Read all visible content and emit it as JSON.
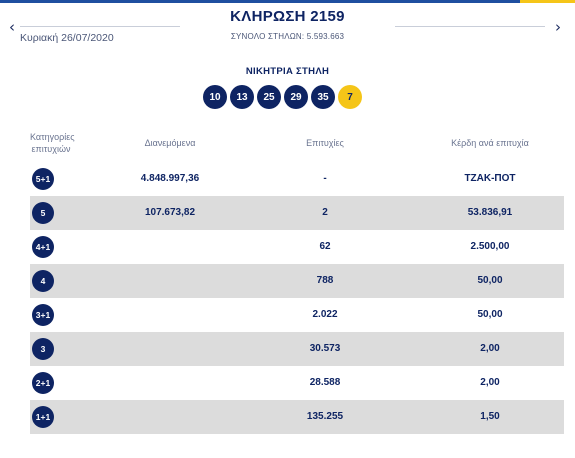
{
  "header": {
    "title": "ΚΛΗΡΩΣΗ 2159",
    "date": "Κυριακή 26/07/2020",
    "total_columns": "ΣΥΝΟΛΟ ΣΤΗΛΩΝ: 5.593.663",
    "prev_icon": "‹",
    "next_icon": "›"
  },
  "winning": {
    "label": "ΝΙΚΗΤΡΙΑ ΣΤΗΛΗ",
    "numbers": [
      "10",
      "13",
      "25",
      "29",
      "35"
    ],
    "joker": "7"
  },
  "table": {
    "headers": {
      "category": "Κατηγορίες επιτυχιών",
      "distributed": "Διανεμόμενα",
      "winners": "Επιτυχίες",
      "prize": "Κέρδη ανά επιτυχία"
    },
    "rows": [
      {
        "category": "5+1",
        "distributed": "4.848.997,36",
        "winners": "-",
        "prize": "ΤΖΑΚ-ΠΟΤ"
      },
      {
        "category": "5",
        "distributed": "107.673,82",
        "winners": "2",
        "prize": "53.836,91"
      },
      {
        "category": "4+1",
        "distributed": "",
        "winners": "62",
        "prize": "2.500,00"
      },
      {
        "category": "4",
        "distributed": "",
        "winners": "788",
        "prize": "50,00"
      },
      {
        "category": "3+1",
        "distributed": "",
        "winners": "2.022",
        "prize": "50,00"
      },
      {
        "category": "3",
        "distributed": "",
        "winners": "30.573",
        "prize": "2,00"
      },
      {
        "category": "2+1",
        "distributed": "",
        "winners": "28.588",
        "prize": "2,00"
      },
      {
        "category": "1+1",
        "distributed": "",
        "winners": "135.255",
        "prize": "1,50"
      }
    ]
  },
  "colors": {
    "primary": "#0e2463",
    "joker": "#f5c518",
    "row_alt": "#dcdcdc"
  }
}
